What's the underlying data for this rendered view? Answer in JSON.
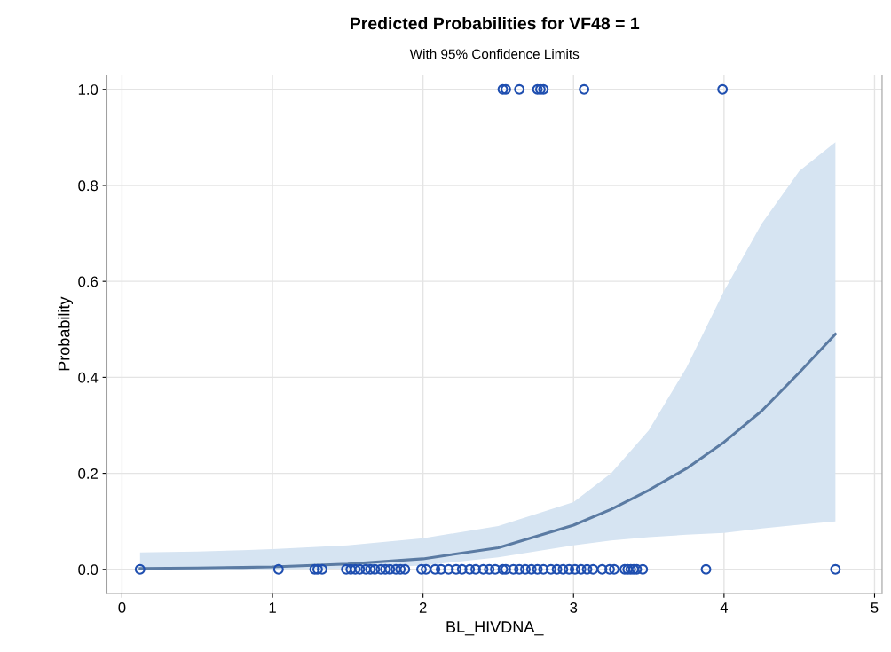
{
  "chart_data": {
    "type": "line",
    "title": "Predicted Probabilities for VF48 = 1",
    "subtitle": "With 95% Confidence Limits",
    "xlabel": "BL_HIVDNA_",
    "ylabel": "Probability",
    "xlim": [
      -0.1,
      5.05
    ],
    "xticks": [
      0,
      1,
      2,
      3,
      4,
      5
    ],
    "ylim": [
      -0.05,
      1.03
    ],
    "yticks": [
      {
        "value": 0,
        "label": "0.0"
      },
      {
        "value": 0.2,
        "label": "0.2"
      },
      {
        "value": 0.4,
        "label": "0.4"
      },
      {
        "value": 0.6,
        "label": "0.6"
      },
      {
        "value": 0.8,
        "label": "0.8"
      },
      {
        "value": 1,
        "label": "1.0"
      }
    ],
    "grid": true,
    "legend": false,
    "series": [
      {
        "color": "#5b7ba3",
        "x": [
          0.12,
          0.5,
          0.8,
          1.0,
          1.5,
          2.0,
          2.5,
          3.0,
          3.25,
          3.5,
          3.75,
          4.0,
          4.25,
          4.5,
          4.74
        ],
        "values": [
          0.002,
          0.003,
          0.004,
          0.005,
          0.011,
          0.022,
          0.045,
          0.092,
          0.125,
          0.165,
          0.21,
          0.265,
          0.33,
          0.41,
          0.49
        ],
        "upper": [
          0.035,
          0.037,
          0.04,
          0.042,
          0.05,
          0.065,
          0.09,
          0.14,
          0.2,
          0.29,
          0.42,
          0.58,
          0.72,
          0.83,
          0.89
        ],
        "lower": [
          0.0,
          0.0,
          0.0,
          0.0,
          0.002,
          0.008,
          0.025,
          0.05,
          0.06,
          0.067,
          0.072,
          0.076,
          0.085,
          0.093,
          0.1
        ]
      },
      {
        "type": "scatter",
        "color": "#1f4fb0",
        "marker": "circle",
        "x": [
          0.12,
          1.04,
          1.28,
          1.3,
          1.33,
          1.49,
          1.52,
          1.55,
          1.58,
          1.62,
          1.65,
          1.68,
          1.72,
          1.75,
          1.78,
          1.82,
          1.85,
          1.88,
          1.99,
          2.02,
          2.08,
          2.12,
          2.17,
          2.22,
          2.26,
          2.31,
          2.35,
          2.4,
          2.44,
          2.48,
          2.53,
          2.55,
          2.6,
          2.64,
          2.68,
          2.72,
          2.76,
          2.8,
          2.85,
          2.89,
          2.93,
          2.97,
          3.01,
          3.05,
          3.09,
          3.13,
          3.19,
          3.24,
          3.27,
          3.34,
          3.36,
          3.38,
          3.4,
          3.42,
          3.46,
          3.88,
          4.74,
          2.53,
          2.55,
          2.64,
          2.76,
          2.78,
          2.8,
          3.07,
          3.99
        ],
        "values": [
          0,
          0,
          0,
          0,
          0,
          0,
          0,
          0,
          0,
          0,
          0,
          0,
          0,
          0,
          0,
          0,
          0,
          0,
          0,
          0,
          0,
          0,
          0,
          0,
          0,
          0,
          0,
          0,
          0,
          0,
          0,
          0,
          0,
          0,
          0,
          0,
          0,
          0,
          0,
          0,
          0,
          0,
          0,
          0,
          0,
          0,
          0,
          0,
          0,
          0,
          0,
          0,
          0,
          0,
          0,
          0,
          0,
          1,
          1,
          1,
          1,
          1,
          1,
          1,
          1
        ]
      }
    ]
  }
}
